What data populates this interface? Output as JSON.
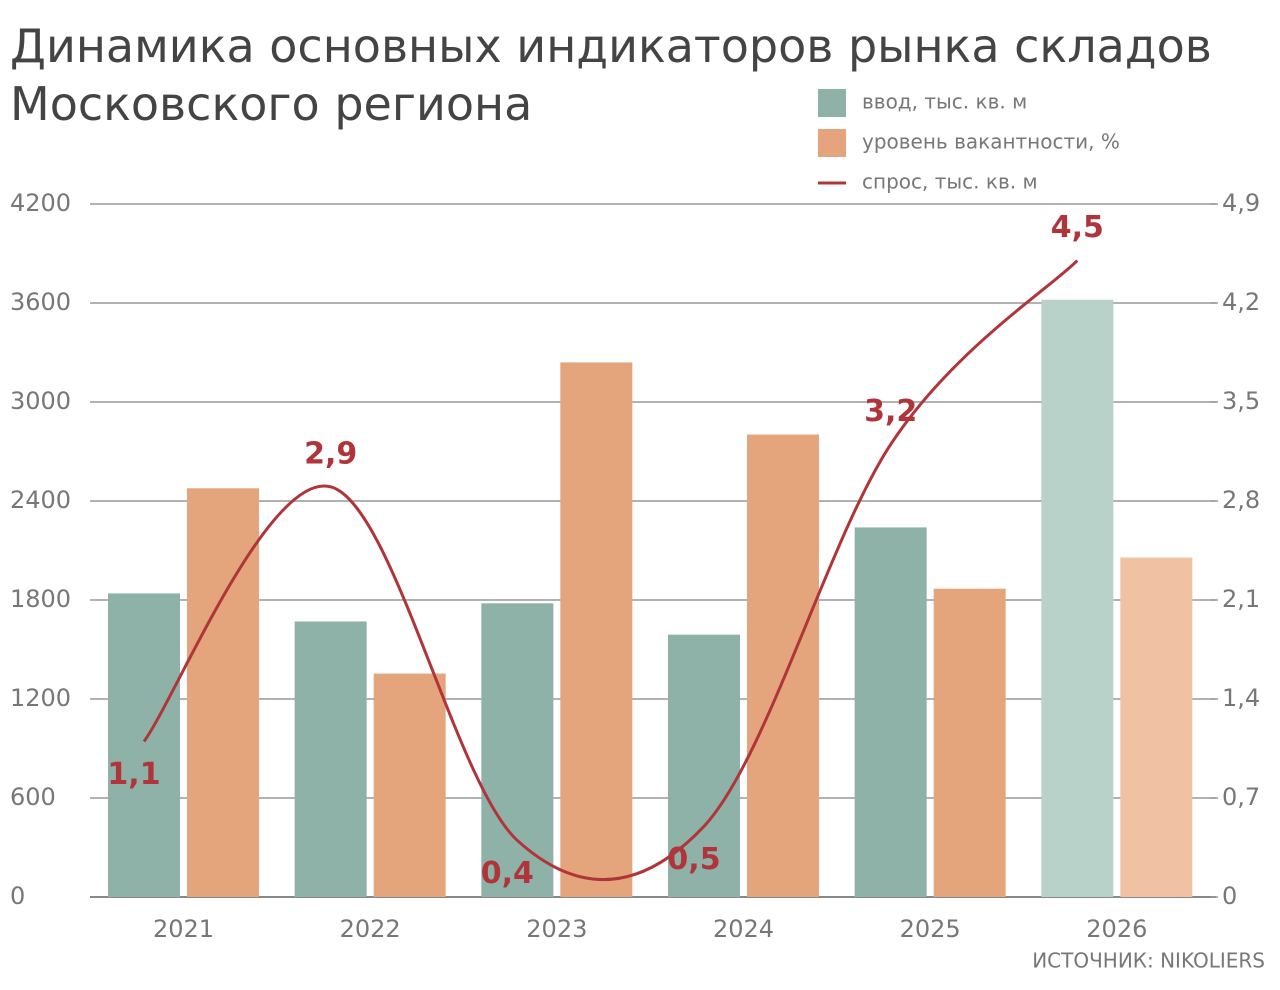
{
  "chart_data": {
    "type": "bar",
    "title": "Динамика основных индикаторов рынка складов",
    "subtitle": "Московского региона",
    "source": "ИСТОЧНИК: NIKOLIERS",
    "categories": [
      "2021",
      "2022",
      "2023",
      "2024",
      "2025",
      "2026"
    ],
    "series": [
      {
        "name": "ввод, тыс. кв. м",
        "type": "bar",
        "color": "#8fb2a8",
        "colors": [
          "#8fb2a8",
          "#8fb2a8",
          "#8fb2a8",
          "#8fb2a8",
          "#8fb2a8",
          "#b8d1c9"
        ],
        "values": [
          1840,
          1670,
          1780,
          1590,
          2240,
          3620
        ]
      },
      {
        "name": "уровень вакантности, %",
        "type": "bar",
        "axis": "y2",
        "color": "#e4a57c",
        "colors": [
          "#e4a57c",
          "#e4a57c",
          "#e4a57c",
          "#e4a57c",
          "#e4a57c",
          "#f0c2a3"
        ],
        "values": [
          2.89,
          1.58,
          3.78,
          3.27,
          2.18,
          2.4
        ]
      },
      {
        "name": "спрос, тыс. кв. м",
        "type": "line",
        "axis": "y2",
        "color": "#b0353a",
        "values": [
          1.1,
          2.9,
          0.4,
          0.5,
          3.2,
          4.5
        ],
        "value_labels": [
          "1,1",
          "2,9",
          "0,4",
          "0,5",
          "3,2",
          "4,5"
        ]
      }
    ],
    "ylim": [
      0,
      4200
    ],
    "yticks": [
      0,
      600,
      1200,
      1800,
      2400,
      3000,
      3600,
      4200
    ],
    "y2lim": [
      0,
      4.9
    ],
    "y2ticks": [
      0,
      {
        "value": 0.7,
        "label": "0,7"
      },
      {
        "value": 1.4,
        "label": "1,4"
      },
      {
        "value": 2.1,
        "label": "2,1"
      },
      {
        "value": 2.8,
        "label": "2,8"
      },
      {
        "value": 3.5,
        "label": "3,5"
      },
      {
        "value": 4.2,
        "label": "4,2"
      },
      {
        "value": 4.9,
        "label": "4,9"
      }
    ],
    "grid": true
  }
}
